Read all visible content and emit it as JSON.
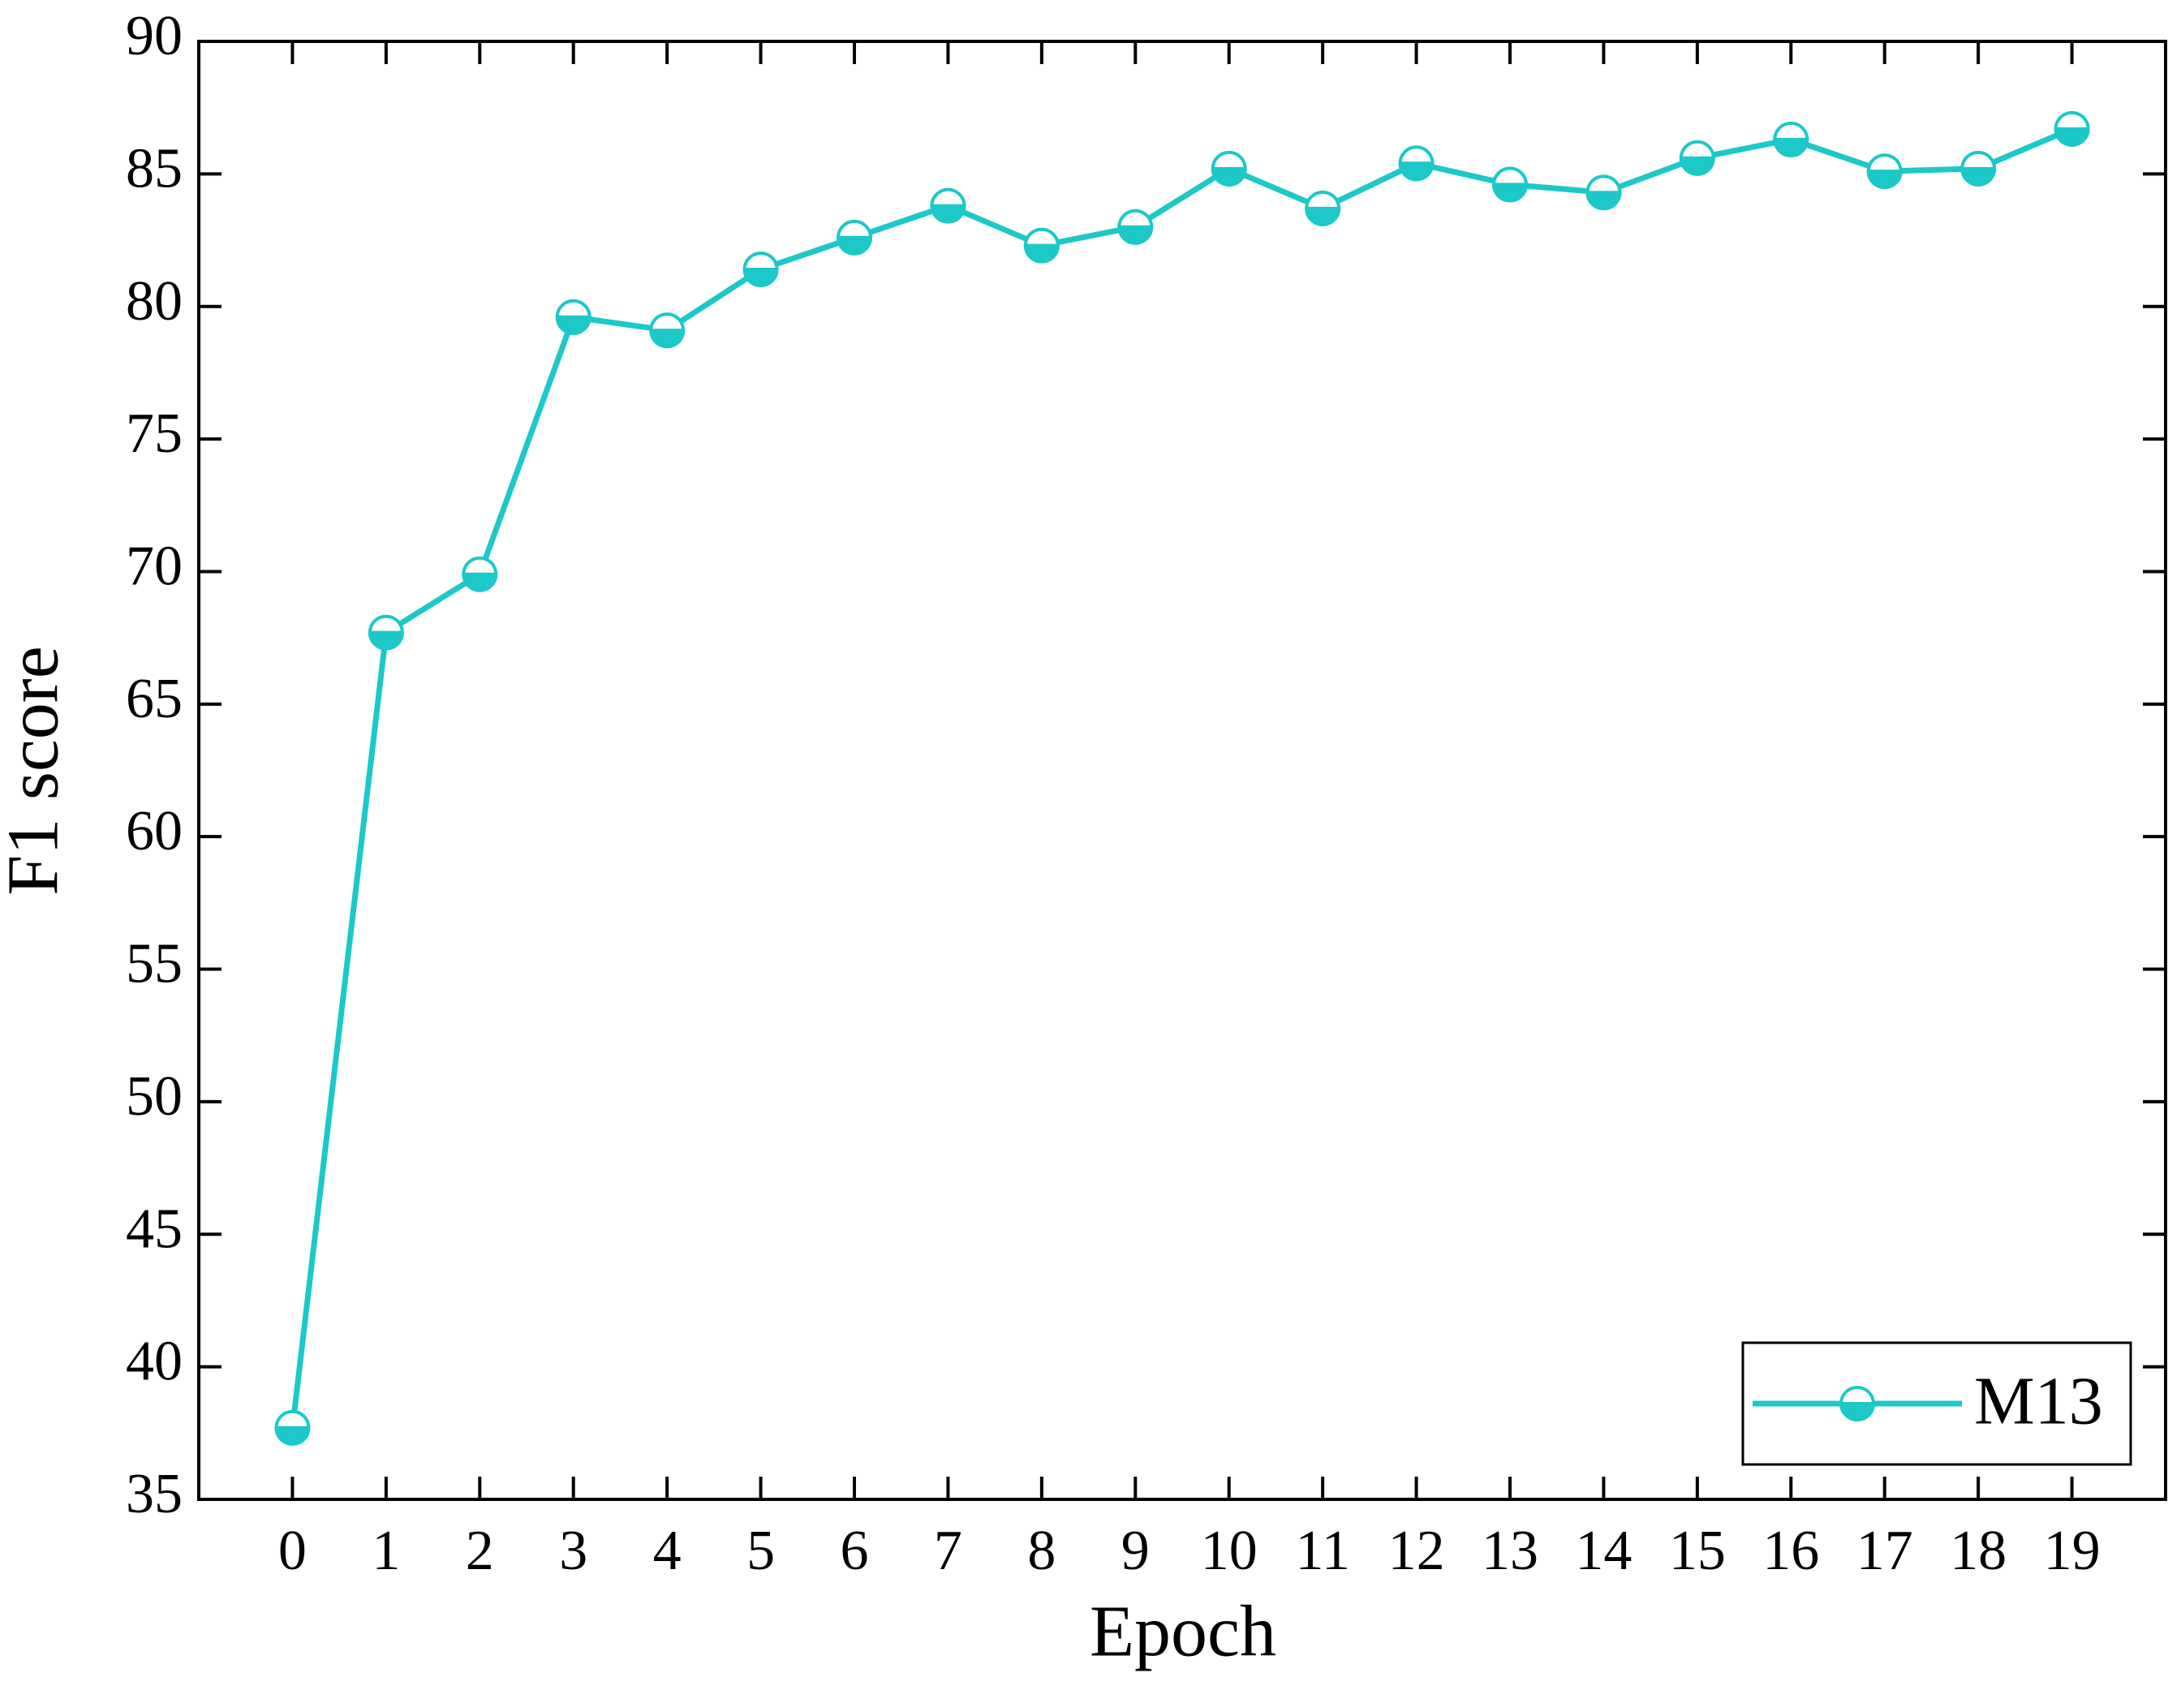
{
  "chart_data": {
    "type": "line",
    "x_label": "Epoch",
    "y_label": "F1 score",
    "x": [
      0,
      1,
      2,
      3,
      4,
      5,
      6,
      7,
      8,
      9,
      10,
      11,
      12,
      13,
      14,
      15,
      16,
      17,
      18,
      19
    ],
    "series": [
      {
        "name": "M13",
        "color": "#1cc8c8",
        "values": [
          37.7,
          67.7,
          69.9,
          79.6,
          79.1,
          81.4,
          82.6,
          83.8,
          82.3,
          83.0,
          85.2,
          83.7,
          85.4,
          84.6,
          84.3,
          85.6,
          86.3,
          85.1,
          85.2,
          86.7
        ]
      }
    ],
    "xlim": [
      -1,
      20
    ],
    "ylim": [
      35,
      90
    ],
    "xticks": [
      0,
      1,
      2,
      3,
      4,
      5,
      6,
      7,
      8,
      9,
      10,
      11,
      12,
      13,
      14,
      15,
      16,
      17,
      18,
      19
    ],
    "yticks": [
      35,
      40,
      45,
      50,
      55,
      60,
      65,
      70,
      75,
      80,
      85,
      90
    ],
    "legend": "lower right"
  }
}
